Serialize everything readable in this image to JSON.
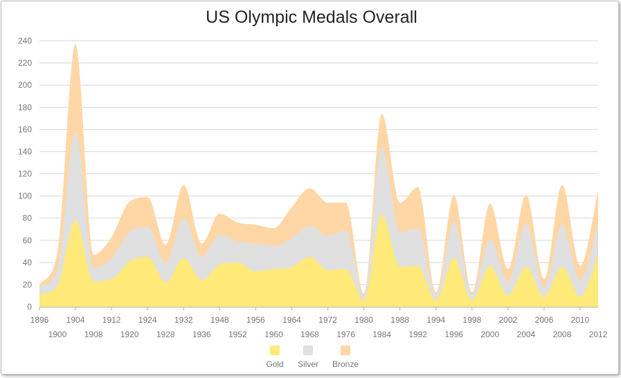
{
  "chart_data": {
    "type": "area",
    "stacked": true,
    "smooth": true,
    "title": "US Olympic Medals Overall",
    "xlabel": "",
    "ylabel": "",
    "ylim": [
      0,
      240
    ],
    "yticks": [
      "0",
      "20",
      "40",
      "60",
      "80",
      "100",
      "120",
      "140",
      "160",
      "180",
      "200",
      "220",
      "240"
    ],
    "x": [
      1896,
      1900,
      1904,
      1908,
      1912,
      1920,
      1924,
      1928,
      1932,
      1936,
      1948,
      1952,
      1956,
      1960,
      1964,
      1968,
      1972,
      1976,
      1980,
      1984,
      1988,
      1992,
      1994,
      1996,
      1998,
      2000,
      2002,
      2004,
      2006,
      2008,
      2010,
      2012
    ],
    "xticks_upper": [
      "1896",
      "1904",
      "1912",
      "1924",
      "1932",
      "1948",
      "1956",
      "1964",
      "1972",
      "1980",
      "1988",
      "1994",
      "1998",
      "2002",
      "2006",
      "2010"
    ],
    "xticks_lower": [
      "1900",
      "1908",
      "1920",
      "1928",
      "1936",
      "1952",
      "1960",
      "1968",
      "1976",
      "1984",
      "1992",
      "1996",
      "2000",
      "2004",
      "2008",
      "2012"
    ],
    "series": [
      {
        "name": "Gold",
        "color": "#ffe979",
        "values": [
          11,
          19,
          78,
          23,
          25,
          41,
          45,
          22,
          44,
          24,
          38,
          40,
          32,
          34,
          36,
          45,
          33,
          34,
          6,
          83,
          36,
          37,
          6,
          44,
          6,
          37,
          10,
          36,
          9,
          36,
          9,
          46
        ]
      },
      {
        "name": "Silver",
        "color": "#e0e0e0",
        "values": [
          7,
          15,
          80,
          12,
          19,
          27,
          27,
          18,
          36,
          21,
          27,
          19,
          25,
          21,
          26,
          28,
          31,
          35,
          4,
          61,
          31,
          34,
          5,
          32,
          5,
          24,
          13,
          39,
          9,
          38,
          15,
          29
        ]
      },
      {
        "name": "Bronze",
        "color": "#ffd7a6",
        "values": [
          2,
          16,
          79,
          12,
          19,
          27,
          27,
          16,
          30,
          12,
          19,
          17,
          17,
          16,
          28,
          34,
          30,
          25,
          2,
          30,
          27,
          37,
          2,
          25,
          2,
          32,
          11,
          26,
          7,
          36,
          13,
          29
        ]
      }
    ],
    "legend": {
      "position": "bottom",
      "entries": [
        "Gold",
        "Silver",
        "Bronze"
      ]
    }
  }
}
